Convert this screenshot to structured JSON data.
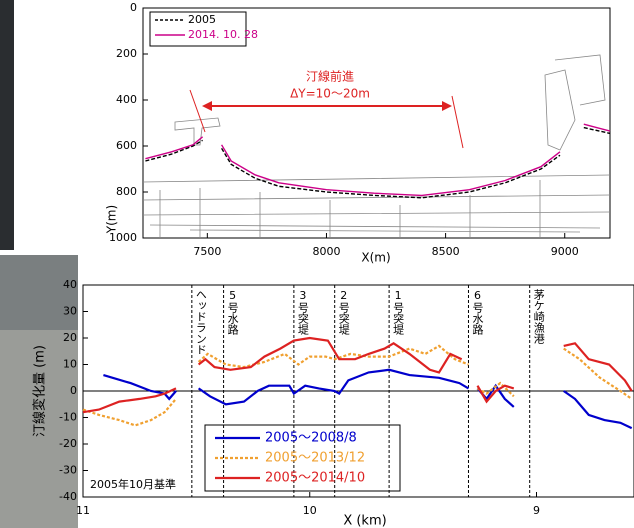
{
  "chart_data": [
    {
      "type": "line",
      "xlabel": "X(m)",
      "ylabel": "Y(m)",
      "xlim": [
        7230,
        9190
      ],
      "ylim": [
        0,
        1000
      ],
      "y_inverted": true,
      "xticks": [
        7500,
        8000,
        8500,
        9000
      ],
      "yticks": [
        0,
        200,
        400,
        600,
        800,
        1000
      ],
      "annotations": [
        "汀線前進",
        "ΔY=10～20m"
      ],
      "series": [
        {
          "name": "2005",
          "color": "#000000",
          "dash": true,
          "x": [
            7240,
            7350,
            7440,
            7480,
            null,
            7560,
            7600,
            7700,
            7800,
            8000,
            8200,
            8400,
            8600,
            8750,
            8900,
            8980,
            null,
            9080,
            9190
          ],
          "values": [
            665,
            635,
            600,
            575,
            null,
            610,
            680,
            740,
            775,
            800,
            815,
            825,
            800,
            760,
            700,
            640,
            null,
            520,
            545
          ]
        },
        {
          "name": "2014. 10. 28",
          "color": "#cc0088",
          "dash": false,
          "x": [
            7240,
            7350,
            7440,
            7480,
            null,
            7560,
            7600,
            7700,
            7800,
            8000,
            8200,
            8400,
            8600,
            8750,
            8900,
            8980,
            null,
            9080,
            9190
          ],
          "values": [
            655,
            625,
            595,
            560,
            null,
            595,
            665,
            725,
            760,
            790,
            805,
            815,
            790,
            750,
            690,
            625,
            null,
            505,
            535
          ]
        }
      ]
    },
    {
      "type": "line",
      "xlabel": "X (km)",
      "ylabel": "汀線変化量 (m)",
      "note": "2005年10月基準",
      "xlim": [
        11,
        8.57
      ],
      "ylim": [
        -40,
        40
      ],
      "xticks": [
        11,
        10,
        9
      ],
      "yticks": [
        -40,
        -30,
        -20,
        -10,
        0,
        10,
        20,
        30,
        40
      ],
      "structures": [
        {
          "label": "ヘッドランド",
          "x": 10.52
        },
        {
          "label": "5号水路",
          "x": 10.38
        },
        {
          "label": "3号突堤",
          "x": 10.07
        },
        {
          "label": "2号突堤",
          "x": 9.89
        },
        {
          "label": "1号突堤",
          "x": 9.65
        },
        {
          "label": "6号水路",
          "x": 9.3
        },
        {
          "label": "茅ケ崎漁港",
          "x": 9.03
        }
      ],
      "series": [
        {
          "name": "2005～2008/8",
          "color": "#0000cc",
          "dash": false,
          "x": [
            10.91,
            10.79,
            10.7,
            10.64,
            10.62,
            10.59,
            null,
            10.49,
            10.44,
            10.37,
            10.29,
            10.23,
            10.18,
            10.09,
            10.07,
            10.02,
            9.96,
            9.89,
            9.87,
            9.83,
            9.74,
            9.65,
            9.56,
            9.43,
            9.34,
            9.3,
            null,
            9.26,
            9.22,
            9.18,
            9.14,
            9.1,
            null,
            8.88,
            8.83,
            8.77,
            8.7,
            8.63,
            8.58
          ],
          "values": [
            6,
            3,
            0,
            -1,
            -3,
            0,
            null,
            1,
            -2,
            -5,
            -4,
            0,
            2,
            2,
            -1,
            2,
            1,
            0,
            -1,
            4,
            7,
            8,
            6,
            5,
            3,
            1,
            null,
            1,
            -3,
            2,
            -3,
            -6,
            null,
            0,
            -3,
            -9,
            -11,
            -12,
            -14
          ]
        },
        {
          "name": "2005～2013/12",
          "color": "#f0a030",
          "dash": true,
          "x": [
            11,
            10.93,
            10.84,
            10.77,
            10.7,
            10.64,
            10.59,
            null,
            10.49,
            10.45,
            10.37,
            10.29,
            10.2,
            10.11,
            10.05,
            10.0,
            9.93,
            9.89,
            9.82,
            9.74,
            9.65,
            9.56,
            9.49,
            9.43,
            9.36,
            9.3,
            null,
            9.26,
            9.22,
            9.16,
            9.1,
            null,
            8.88,
            8.81,
            8.72,
            8.63,
            8.58
          ],
          "values": [
            -7,
            -9,
            -11,
            -13,
            -11,
            -8,
            -3,
            null,
            11,
            14,
            10,
            9,
            11,
            14,
            10,
            13,
            13,
            12,
            14,
            13,
            13,
            16,
            14,
            17,
            12,
            10,
            null,
            1,
            -1,
            3,
            -2,
            null,
            16,
            12,
            5,
            0,
            -3
          ]
        },
        {
          "name": "2005～2014/10",
          "color": "#dd2222",
          "dash": false,
          "x": [
            11,
            10.93,
            10.84,
            10.75,
            10.68,
            10.64,
            10.59,
            null,
            10.49,
            10.46,
            10.42,
            10.35,
            10.26,
            10.2,
            10.13,
            10.07,
            10.0,
            9.92,
            9.87,
            9.8,
            9.74,
            9.67,
            9.63,
            9.56,
            9.47,
            9.43,
            9.38,
            9.33,
            null,
            9.26,
            9.22,
            9.18,
            9.14,
            9.1,
            null,
            8.88,
            8.83,
            8.77,
            8.68,
            8.61,
            8.58
          ],
          "values": [
            -8,
            -7,
            -4,
            -3,
            -2,
            -1,
            1,
            null,
            10,
            12,
            9,
            8,
            9,
            13,
            16,
            19,
            20,
            19,
            12,
            12,
            14,
            16,
            18,
            14,
            8,
            7,
            14,
            12,
            null,
            2,
            -4,
            0,
            2,
            1,
            null,
            17,
            18,
            12,
            10,
            4,
            0
          ]
        }
      ]
    }
  ]
}
